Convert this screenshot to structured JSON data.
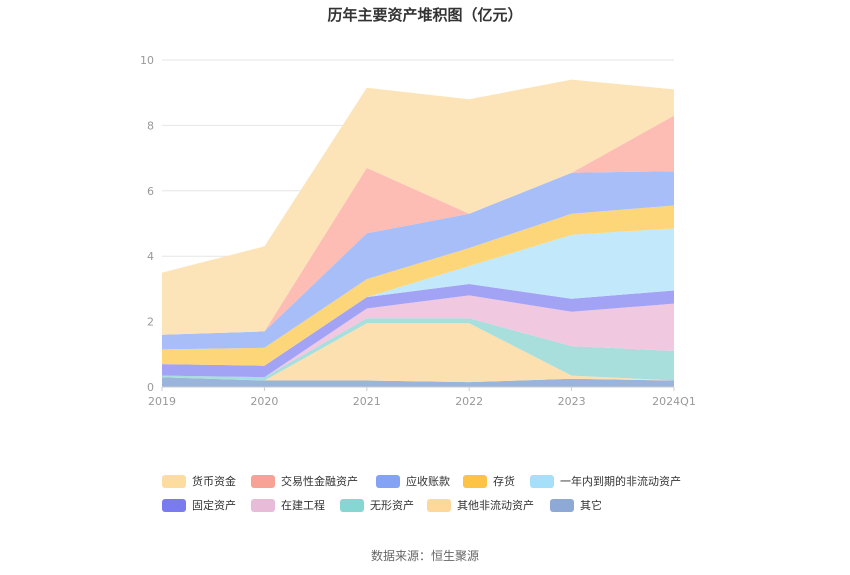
{
  "chart_data": {
    "type": "area",
    "stacked": true,
    "title": "历年主要资产堆积图（亿元）",
    "categories": [
      "2019",
      "2020",
      "2021",
      "2022",
      "2023",
      "2024Q1"
    ],
    "ylim": [
      0,
      10
    ],
    "yticks": [
      "0",
      "2",
      "4",
      "6",
      "8",
      "10"
    ],
    "grid": true,
    "legend_position": "bottom",
    "series": [
      {
        "name": "其它",
        "color": "#9ab4dc",
        "values": [
          0.3,
          0.2,
          0.2,
          0.15,
          0.25,
          0.2
        ]
      },
      {
        "name": "其他非流动资产",
        "color": "#fde0b0",
        "values": [
          0.0,
          0.0,
          1.75,
          1.8,
          0.1,
          0.0
        ]
      },
      {
        "name": "无形资产",
        "color": "#a8dedc",
        "values": [
          0.05,
          0.1,
          0.15,
          0.15,
          0.9,
          0.9
        ]
      },
      {
        "name": "在建工程",
        "color": "#f0c8e0",
        "values": [
          0.0,
          0.0,
          0.3,
          0.7,
          1.05,
          1.45
        ]
      },
      {
        "name": "固定资产",
        "color": "#a3a3f5",
        "values": [
          0.35,
          0.35,
          0.35,
          0.35,
          0.4,
          0.4
        ]
      },
      {
        "name": "一年内到期的非流动资产",
        "color": "#c2e8fb",
        "values": [
          0.0,
          0.0,
          0.0,
          0.55,
          1.95,
          1.9
        ]
      },
      {
        "name": "存货",
        "color": "#fed67a",
        "values": [
          0.45,
          0.55,
          0.55,
          0.55,
          0.65,
          0.7
        ]
      },
      {
        "name": "应收账款",
        "color": "#a8bef9",
        "values": [
          0.45,
          0.5,
          1.4,
          1.05,
          1.25,
          1.05
        ]
      },
      {
        "name": "交易性金融资产",
        "color": "#fdbcb4",
        "values": [
          0.0,
          0.0,
          2.0,
          0.0,
          0.0,
          1.7
        ]
      },
      {
        "name": "货币资金",
        "color": "#fde4b8",
        "values": [
          1.9,
          2.6,
          2.45,
          3.5,
          2.85,
          0.8
        ]
      }
    ],
    "legend": [
      {
        "name": "货币资金",
        "color": "#fddca0"
      },
      {
        "name": "交易性金融资产",
        "color": "#f8a296"
      },
      {
        "name": "应收账款",
        "color": "#85a3f5"
      },
      {
        "name": "存货",
        "color": "#fcc344"
      },
      {
        "name": "一年内到期的非流动资产",
        "color": "#a6dff9"
      },
      {
        "name": "固定资产",
        "color": "#7b7bf0"
      },
      {
        "name": "在建工程",
        "color": "#e8bcd8"
      },
      {
        "name": "无形资产",
        "color": "#86d6d4"
      },
      {
        "name": "其他非流动资产",
        "color": "#fdd89a"
      },
      {
        "name": "其它",
        "color": "#8fa9d6"
      }
    ]
  },
  "source_text": "数据来源：恒生聚源"
}
